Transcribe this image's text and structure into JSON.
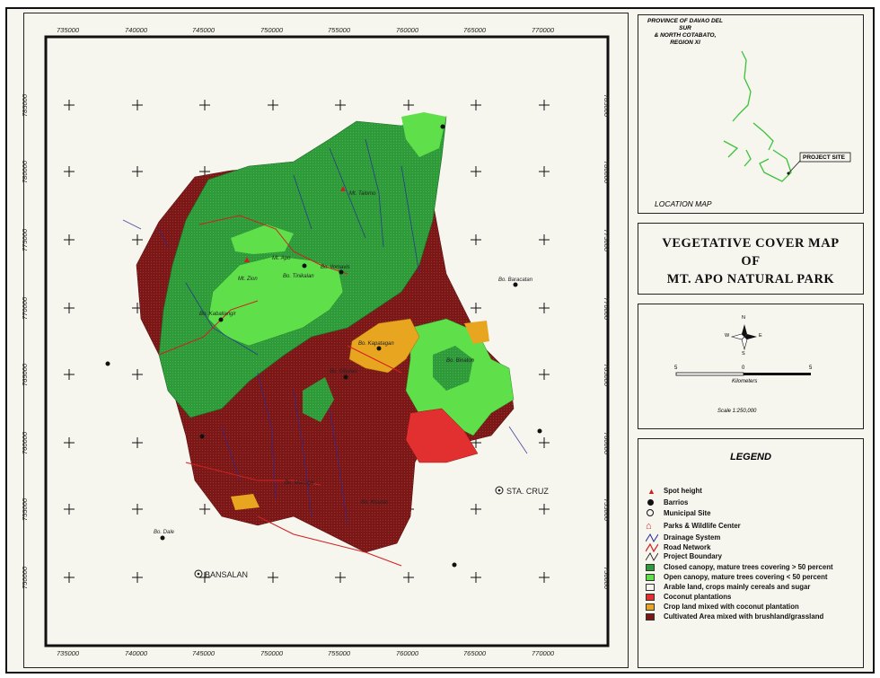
{
  "map": {
    "top_ticks": [
      "735000",
      "740000",
      "745000",
      "750000",
      "755000",
      "760000",
      "765000",
      "770000"
    ],
    "bottom_ticks": [
      "735000",
      "740000",
      "745000",
      "750000",
      "755000",
      "760000",
      "765000",
      "770000"
    ],
    "left_ticks": [
      "785000",
      "780000",
      "775000",
      "770000",
      "765000",
      "760000",
      "755000",
      "750000"
    ],
    "right_ticks": [
      "785000",
      "780000",
      "775000",
      "770000",
      "765000",
      "760000",
      "755000",
      "750000"
    ],
    "places": {
      "kidapawan": "Mt. Apo",
      "tinikalan": "Bo. Tinikalan",
      "zion": "Mt. Zion",
      "kiapawan": "Bo. Kapatagan",
      "sibulan": "Bo. Sibulan",
      "baracatan": "Bo. Baracatan",
      "dale": "Bo. Dale",
      "binaton": "Bo. Binaton",
      "kisulao": "Bo. Kisulao",
      "tagbaitang": "Mt. Talomo",
      "ilomavis": "Bo. Ilomavis",
      "managa": "Bo. Managa",
      "kaballaiangir": "Bo. Kaballangir",
      "sta_cruz": "STA. CRUZ",
      "bansalan": "BANSALAN"
    }
  },
  "location_map": {
    "header": "PROVINCE OF DAVAO DEL SUR\n& NORTH COTABATO,\nREGION XI",
    "project_site": "PROJECT SITE",
    "caption": "LOCATION MAP"
  },
  "title": {
    "line1": "VEGETATIVE COVER MAP",
    "line2": "OF",
    "line3": "MT. APO NATURAL PARK"
  },
  "scale": {
    "north": "N",
    "south": "S",
    "east": "E",
    "west": "W",
    "labels": [
      "5",
      "0",
      "5"
    ],
    "unit": "Kilometers",
    "ratio": "Scale 1:250,000"
  },
  "legend": {
    "title": "LEGEND",
    "symbols": [
      {
        "label": "Spot height"
      },
      {
        "label": "Barrios"
      },
      {
        "label": "Municipal Site"
      },
      {
        "label": "Parks & Wildlife Center"
      },
      {
        "label": "Drainage System"
      },
      {
        "label": "Road Network"
      },
      {
        "label": "Project Boundary"
      }
    ],
    "classes": [
      {
        "label": "Closed canopy, mature trees covering > 50 percent",
        "color": "#2e9a3a"
      },
      {
        "label": "Open canopy, mature trees covering < 50 percent",
        "color": "#5fe04a"
      },
      {
        "label": "Arable land, crops mainly cereals and sugar",
        "color": "#f6f5ee"
      },
      {
        "label": "Coconut plantations",
        "color": "#e23030"
      },
      {
        "label": "Crop land mixed with coconut plantation",
        "color": "#e8a520"
      },
      {
        "label": "Cultivated Area mixed with brushland/grassland",
        "color": "#7a1818"
      }
    ]
  }
}
